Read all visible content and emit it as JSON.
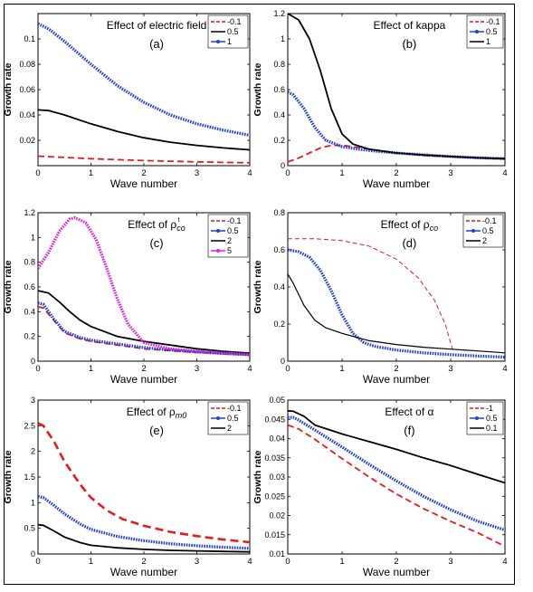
{
  "chart_data": [
    {
      "type": "line",
      "title": "Effect of electric field",
      "panel_label": "(a)",
      "xlabel": "Wave number",
      "ylabel": "Growth rate",
      "xlim": [
        0,
        4
      ],
      "ylim": [
        0,
        0.12
      ],
      "xticks": [
        "0",
        "1",
        "2",
        "3",
        "4"
      ],
      "yticks": [
        {
          "v": 0.02,
          "label": "0.02"
        },
        {
          "v": 0.04,
          "label": "0.04"
        },
        {
          "v": 0.06,
          "label": "0.06"
        },
        {
          "v": 0.08,
          "label": "0.08"
        },
        {
          "v": 0.1,
          "label": "0.1"
        }
      ],
      "legend_position": "top-right",
      "series": [
        {
          "name": "-0.1",
          "color": "#e41a1c",
          "style": "dashed",
          "x": [
            0,
            0.5,
            1,
            1.5,
            2,
            2.5,
            3,
            3.5,
            4
          ],
          "y": [
            0.0075,
            0.0065,
            0.0055,
            0.0047,
            0.004,
            0.0035,
            0.003,
            0.0026,
            0.0023
          ]
        },
        {
          "name": "0.5",
          "color": "#000000",
          "style": "solid",
          "x": [
            0,
            0.2,
            0.5,
            1,
            1.5,
            2,
            2.5,
            3,
            3.5,
            4
          ],
          "y": [
            0.044,
            0.0435,
            0.04,
            0.033,
            0.027,
            0.022,
            0.0185,
            0.016,
            0.014,
            0.0125
          ]
        },
        {
          "name": "1",
          "color": "#1f3fdb",
          "style": "marker",
          "x": [
            0,
            0.2,
            0.5,
            1,
            1.5,
            2,
            2.5,
            3,
            3.5,
            4
          ],
          "y": [
            0.112,
            0.108,
            0.098,
            0.08,
            0.063,
            0.05,
            0.04,
            0.033,
            0.028,
            0.024
          ]
        }
      ]
    },
    {
      "type": "line",
      "title": "Effect of kappa",
      "panel_label": "(b)",
      "xlabel": "Wave number",
      "ylabel": "Growth rate",
      "xlim": [
        0,
        4
      ],
      "ylim": [
        0,
        1.2
      ],
      "xticks": [
        "0",
        "1",
        "2",
        "3",
        "4"
      ],
      "yticks": [
        {
          "v": 0,
          "label": "0"
        },
        {
          "v": 0.2,
          "label": "0.2"
        },
        {
          "v": 0.4,
          "label": "0.4"
        },
        {
          "v": 0.6,
          "label": "0.6"
        },
        {
          "v": 0.8,
          "label": "0.8"
        },
        {
          "v": 1,
          "label": "1"
        },
        {
          "v": 1.2,
          "label": "1.2"
        }
      ],
      "legend_position": "top-right",
      "series": [
        {
          "name": "-0.1",
          "color": "#e41a1c",
          "style": "dashed",
          "x": [
            0,
            0.2,
            0.4,
            0.6,
            0.8,
            1,
            1.2,
            1.5,
            2,
            2.5,
            3,
            3.5,
            4
          ],
          "y": [
            0.03,
            0.06,
            0.1,
            0.14,
            0.16,
            0.16,
            0.15,
            0.13,
            0.1,
            0.08,
            0.07,
            0.06,
            0.055
          ]
        },
        {
          "name": "0.5",
          "color": "#1f3fdb",
          "style": "marker",
          "x": [
            0,
            0.1,
            0.3,
            0.5,
            0.7,
            1,
            1.3,
            1.6,
            2,
            2.5,
            3,
            3.5,
            4
          ],
          "y": [
            0.58,
            0.56,
            0.45,
            0.3,
            0.2,
            0.15,
            0.13,
            0.115,
            0.1,
            0.085,
            0.072,
            0.062,
            0.055
          ]
        },
        {
          "name": "1",
          "color": "#000000",
          "style": "solid",
          "x": [
            0,
            0.2,
            0.4,
            0.6,
            0.8,
            1,
            1.2,
            1.5,
            2,
            2.5,
            3,
            3.5,
            4
          ],
          "y": [
            1.2,
            1.15,
            1.0,
            0.75,
            0.45,
            0.25,
            0.17,
            0.13,
            0.1,
            0.085,
            0.072,
            0.062,
            0.055
          ]
        }
      ]
    },
    {
      "type": "line",
      "title": "Effect of ρ",
      "title_sup": "t",
      "title_sub": "co",
      "panel_label": "(c)",
      "xlabel": "Wave number",
      "ylabel": "Growth rate",
      "xlim": [
        0,
        4
      ],
      "ylim": [
        0,
        1.2
      ],
      "xticks": [
        "0",
        "1",
        "2",
        "3",
        "4"
      ],
      "yticks": [
        {
          "v": 0,
          "label": "0"
        },
        {
          "v": 0.2,
          "label": "0.2"
        },
        {
          "v": 0.4,
          "label": "0.4"
        },
        {
          "v": 0.6,
          "label": "0.6"
        },
        {
          "v": 0.8,
          "label": "0.8"
        },
        {
          "v": 1,
          "label": "1"
        },
        {
          "v": 1.2,
          "label": "1.2"
        }
      ],
      "legend_position": "top-right",
      "series": [
        {
          "name": "-0.1",
          "color": "#e41a1c",
          "style": "dashed",
          "x": [
            0,
            0.1,
            0.3,
            0.5,
            0.8,
            1,
            1.5,
            2,
            2.5,
            3,
            3.5,
            4
          ],
          "y": [
            0.44,
            0.43,
            0.33,
            0.23,
            0.18,
            0.16,
            0.13,
            0.1,
            0.085,
            0.07,
            0.06,
            0.05
          ]
        },
        {
          "name": "0.5",
          "color": "#1f3fdb",
          "style": "marker",
          "x": [
            0,
            0.1,
            0.3,
            0.5,
            0.8,
            1,
            1.5,
            2,
            2.5,
            3,
            3.5,
            4
          ],
          "y": [
            0.47,
            0.46,
            0.34,
            0.24,
            0.19,
            0.17,
            0.14,
            0.11,
            0.09,
            0.075,
            0.062,
            0.052
          ]
        },
        {
          "name": "2",
          "color": "#000000",
          "style": "solid",
          "x": [
            0,
            0.2,
            0.4,
            0.6,
            0.8,
            1,
            1.5,
            2,
            2.5,
            3,
            3.5,
            4
          ],
          "y": [
            0.57,
            0.55,
            0.48,
            0.4,
            0.33,
            0.28,
            0.2,
            0.16,
            0.13,
            0.1,
            0.08,
            0.065
          ]
        },
        {
          "name": "5",
          "color": "#e020e0",
          "style": "marker",
          "x": [
            0,
            0.2,
            0.4,
            0.6,
            0.7,
            0.9,
            1.1,
            1.3,
            1.5,
            1.7,
            2,
            2.5,
            3,
            3.5,
            4
          ],
          "y": [
            0.75,
            0.88,
            1.05,
            1.15,
            1.16,
            1.12,
            0.98,
            0.75,
            0.5,
            0.3,
            0.15,
            0.1,
            0.08,
            0.065,
            0.055
          ]
        }
      ]
    },
    {
      "type": "line",
      "title": "Effect of ρ",
      "title_sub": "co",
      "panel_label": "(d)",
      "xlabel": "Wave number",
      "ylabel": "Growth rate",
      "xlim": [
        0,
        4
      ],
      "ylim": [
        0,
        0.8
      ],
      "xticks": [
        "0",
        "1",
        "2",
        "3",
        "4"
      ],
      "yticks": [
        {
          "v": 0,
          "label": "0"
        },
        {
          "v": 0.2,
          "label": "0.2"
        },
        {
          "v": 0.4,
          "label": "0.4"
        },
        {
          "v": 0.6,
          "label": "0.6"
        },
        {
          "v": 0.8,
          "label": "0.8"
        }
      ],
      "legend_position": "top-right",
      "series": [
        {
          "name": "-0.1",
          "color": "#e41a1c",
          "style": "dashed-thin",
          "x": [
            0,
            0.5,
            1,
            1.5,
            2,
            2.4,
            2.7,
            2.9,
            3.0,
            3.05
          ],
          "y": [
            0.66,
            0.66,
            0.65,
            0.62,
            0.55,
            0.45,
            0.33,
            0.2,
            0.1,
            0.05
          ]
        },
        {
          "name": "0.5",
          "color": "#1f3fdb",
          "style": "marker",
          "x": [
            0,
            0.2,
            0.4,
            0.6,
            0.8,
            1,
            1.2,
            1.4,
            1.6,
            2,
            2.5,
            3,
            3.5,
            4
          ],
          "y": [
            0.6,
            0.59,
            0.56,
            0.49,
            0.38,
            0.25,
            0.15,
            0.1,
            0.08,
            0.06,
            0.045,
            0.035,
            0.028,
            0.022
          ]
        },
        {
          "name": "2",
          "color": "#000000",
          "style": "solid-thin",
          "x": [
            0,
            0.1,
            0.3,
            0.5,
            0.7,
            1,
            1.5,
            2,
            2.5,
            3,
            3.5,
            4
          ],
          "y": [
            0.47,
            0.42,
            0.3,
            0.22,
            0.18,
            0.15,
            0.11,
            0.09,
            0.075,
            0.065,
            0.055,
            0.045
          ]
        }
      ]
    },
    {
      "type": "line",
      "title": "Effect of ρ",
      "title_sub": "m0",
      "panel_label": "(e)",
      "xlabel": "Wave number",
      "ylabel": "Growth rate",
      "xlim": [
        0,
        4
      ],
      "ylim": [
        0,
        3
      ],
      "xticks": [
        "0",
        "1",
        "2",
        "3",
        "4"
      ],
      "yticks": [
        {
          "v": 0,
          "label": "0"
        },
        {
          "v": 0.5,
          "label": "0.5"
        },
        {
          "v": 1,
          "label": "1"
        },
        {
          "v": 1.5,
          "label": "1.5"
        },
        {
          "v": 2,
          "label": "2"
        },
        {
          "v": 2.5,
          "label": "2.5"
        },
        {
          "v": 3,
          "label": "3"
        }
      ],
      "legend_position": "top-right",
      "series": [
        {
          "name": "-0.1",
          "color": "#e41a1c",
          "style": "dashed-thick",
          "x": [
            0,
            0.1,
            0.3,
            0.5,
            0.8,
            1,
            1.3,
            1.6,
            2,
            2.5,
            3,
            3.5,
            4
          ],
          "y": [
            2.55,
            2.5,
            2.2,
            1.8,
            1.35,
            1.1,
            0.85,
            0.68,
            0.55,
            0.43,
            0.35,
            0.28,
            0.23
          ]
        },
        {
          "name": "0.5",
          "color": "#1f3fdb",
          "style": "marker",
          "x": [
            0,
            0.1,
            0.3,
            0.5,
            0.8,
            1,
            1.5,
            2,
            2.5,
            3,
            3.5,
            4
          ],
          "y": [
            1.12,
            1.1,
            0.95,
            0.78,
            0.58,
            0.48,
            0.34,
            0.26,
            0.2,
            0.16,
            0.13,
            0.11
          ]
        },
        {
          "name": "2",
          "color": "#000000",
          "style": "solid",
          "x": [
            0,
            0.1,
            0.3,
            0.5,
            0.8,
            1,
            1.5,
            2,
            2.5,
            3,
            3.5,
            4
          ],
          "y": [
            0.57,
            0.56,
            0.45,
            0.33,
            0.22,
            0.17,
            0.12,
            0.09,
            0.07,
            0.06,
            0.05,
            0.04
          ]
        }
      ]
    },
    {
      "type": "line",
      "title": "Effect of α",
      "panel_label": "(f)",
      "xlabel": "Wave number",
      "ylabel": "Growth rate",
      "xlim": [
        0,
        4
      ],
      "ylim": [
        0.01,
        0.05
      ],
      "xticks": [
        "0",
        "1",
        "2",
        "3",
        "4"
      ],
      "yticks": [
        {
          "v": 0.01,
          "label": "0.01"
        },
        {
          "v": 0.015,
          "label": "0.015"
        },
        {
          "v": 0.02,
          "label": "0.02"
        },
        {
          "v": 0.025,
          "label": "0.025"
        },
        {
          "v": 0.03,
          "label": "0.03"
        },
        {
          "v": 0.035,
          "label": "0.035"
        },
        {
          "v": 0.04,
          "label": "0.04"
        },
        {
          "v": 0.045,
          "label": "0.045"
        },
        {
          "v": 0.05,
          "label": "0.05"
        }
      ],
      "legend_position": "top-right",
      "series": [
        {
          "name": "-1",
          "color": "#e41a1c",
          "style": "dashed",
          "x": [
            0,
            0.2,
            0.5,
            1,
            1.5,
            2,
            2.5,
            3,
            3.5,
            4
          ],
          "y": [
            0.0435,
            0.0425,
            0.0398,
            0.0348,
            0.03,
            0.0256,
            0.0218,
            0.0185,
            0.0155,
            0.012
          ]
        },
        {
          "name": "0.5",
          "color": "#1f3fdb",
          "style": "marker",
          "x": [
            0,
            0.1,
            0.2,
            0.5,
            1,
            1.5,
            2,
            2.5,
            3,
            3.5,
            4
          ],
          "y": [
            0.0455,
            0.0455,
            0.0448,
            0.0422,
            0.0378,
            0.0333,
            0.029,
            0.025,
            0.0215,
            0.0185,
            0.0162
          ]
        },
        {
          "name": "0.1",
          "color": "#000000",
          "style": "solid",
          "x": [
            0,
            0.1,
            0.3,
            0.5,
            1,
            1.5,
            2,
            2.5,
            3,
            3.5,
            4
          ],
          "y": [
            0.0472,
            0.0471,
            0.0458,
            0.0435,
            0.0412,
            0.0392,
            0.0372,
            0.035,
            0.033,
            0.0307,
            0.0285
          ]
        }
      ]
    }
  ]
}
